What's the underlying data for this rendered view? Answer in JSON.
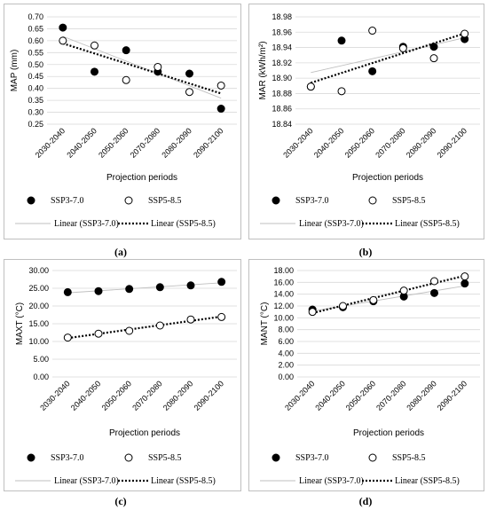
{
  "captions": [
    "(a)",
    "(b)",
    "(c)",
    "(d)"
  ],
  "legend": {
    "ssp370": "SSP3-7.0",
    "ssp585": "SSP5-8.5",
    "lin370": "Linear (SSP3-7.0)",
    "lin585": "Linear (SSP5-8.5)"
  },
  "colors": {
    "ssp370_fill": "#000000",
    "ssp585_fill": "#ffffff",
    "trend370": "#bfbfbf",
    "trend585": "#000000",
    "grid": "#d9d9d9"
  },
  "chart_data": [
    {
      "type": "scatter",
      "ylabel": "MAP (mm)",
      "xlabel": "Projection periods",
      "categories": [
        "2030-2040",
        "2040-2050",
        "2050-2060",
        "2070-2080",
        "2080-2090",
        "2090-2100"
      ],
      "ylim": [
        0.25,
        0.7
      ],
      "yticks": [
        "0.25",
        "0.30",
        "0.35",
        "0.40",
        "0.45",
        "0.50",
        "0.55",
        "0.60",
        "0.65",
        "0.70"
      ],
      "series": [
        {
          "name": "SSP3-7.0",
          "values": [
            0.655,
            0.47,
            0.56,
            0.47,
            0.462,
            0.315
          ]
        },
        {
          "name": "SSP5-8.5",
          "values": [
            0.6,
            0.58,
            0.435,
            0.49,
            0.385,
            0.412
          ]
        }
      ],
      "grid": true
    },
    {
      "type": "scatter",
      "ylabel": "MAR (kWh/m²)",
      "xlabel": "Projection periods",
      "categories": [
        "2030-2040",
        "2040-2050",
        "2050-2060",
        "2070-2080",
        "2080-2090",
        "2090-2100"
      ],
      "ylim": [
        18.84,
        18.98
      ],
      "yticks": [
        "18.84",
        "18.86",
        "18.88",
        "18.90",
        "18.92",
        "18.94",
        "18.96",
        "18.98"
      ],
      "series": [
        {
          "name": "SSP3-7.0",
          "values": [
            18.889,
            18.949,
            18.909,
            18.941,
            18.941,
            18.951
          ]
        },
        {
          "name": "SSP5-8.5",
          "values": [
            18.889,
            18.883,
            18.962,
            18.939,
            18.926,
            18.958
          ]
        }
      ],
      "grid": true
    },
    {
      "type": "scatter",
      "ylabel": "MAXT (°C)",
      "xlabel": "Projection periods",
      "categories": [
        "2030-2040",
        "2040-2050",
        "2050-2060",
        "2070-2080",
        "2080-2090",
        "2090-2100"
      ],
      "ylim": [
        0,
        30
      ],
      "yticks": [
        "0.00",
        "5.00",
        "10.00",
        "15.00",
        "20.00",
        "25.00",
        "30.00"
      ],
      "series": [
        {
          "name": "SSP3-7.0",
          "values": [
            23.9,
            24.2,
            24.8,
            25.3,
            25.8,
            26.8
          ]
        },
        {
          "name": "SSP5-8.5",
          "values": [
            11.1,
            12.2,
            13.0,
            14.5,
            16.2,
            16.9
          ]
        }
      ],
      "grid": true
    },
    {
      "type": "scatter",
      "ylabel": "MANT (°C)",
      "xlabel": "Projection periods",
      "categories": [
        "2030-2040",
        "2040-2050",
        "2050-2060",
        "2070-2080",
        "2080-2090",
        "2090-2100"
      ],
      "ylim": [
        0,
        18
      ],
      "yticks": [
        "0.00",
        "2.00",
        "4.00",
        "6.00",
        "8.00",
        "10.00",
        "12.00",
        "14.00",
        "16.00",
        "18.00"
      ],
      "series": [
        {
          "name": "SSP3-7.0",
          "values": [
            11.4,
            11.8,
            12.8,
            13.6,
            14.2,
            15.8
          ]
        },
        {
          "name": "SSP5-8.5",
          "values": [
            11.0,
            12.0,
            13.0,
            14.6,
            16.2,
            17.0
          ]
        }
      ],
      "grid": true
    }
  ]
}
